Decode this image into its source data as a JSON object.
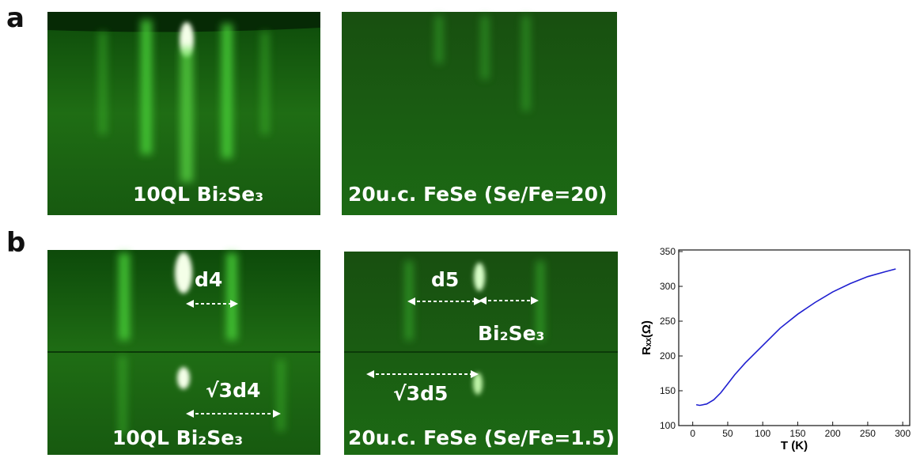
{
  "panel_a": {
    "label": "a",
    "images": [
      "10QL Bi₂Se₃",
      "20u.c. FeSe (Se/Fe=20)"
    ]
  },
  "panel_b": {
    "label": "b",
    "image_left": {
      "caption": "10QL Bi₂Se₃",
      "top_spacing": "d4",
      "bottom_spacing": "√3d4"
    },
    "image_right": {
      "caption": "20u.c. FeSe (Se/Fe=1.5)",
      "top_spacing": "d5",
      "top_reference": "Bi₂Se₃",
      "bottom_spacing": "√3d5"
    }
  },
  "chart_data": {
    "type": "line",
    "x_label": "T (K)",
    "y_label": "Rₓₓ(Ω)",
    "x": [
      5,
      10,
      20,
      30,
      40,
      50,
      60,
      75,
      100,
      125,
      150,
      175,
      200,
      225,
      250,
      275,
      290
    ],
    "values": [
      130,
      129,
      131,
      137,
      147,
      160,
      173,
      190,
      215,
      240,
      260,
      277,
      292,
      304,
      314,
      321,
      325
    ],
    "color": "#1f1fd0",
    "xlim": [
      -20,
      310
    ],
    "xticks": [
      0,
      50,
      100,
      150,
      200,
      250,
      300
    ],
    "ylim": [
      100,
      350
    ],
    "yticks": [
      100,
      150,
      200,
      250,
      300,
      350
    ]
  }
}
